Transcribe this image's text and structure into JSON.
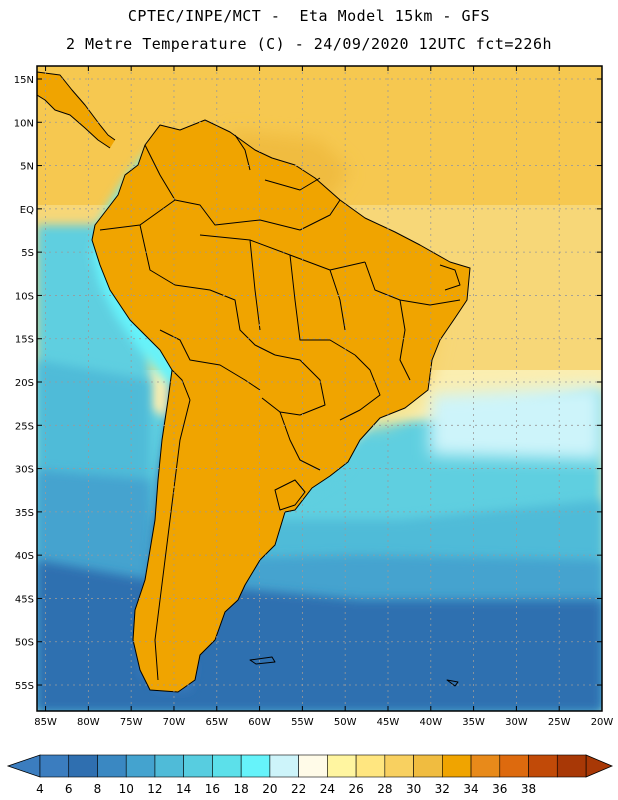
{
  "header": {
    "line1": "CPTEC/INPE/MCT -  Eta Model 15km - GFS",
    "line2": "2 Metre Temperature (C) - 24/09/2020 12UTC fct=226h"
  },
  "map": {
    "region": "South America",
    "lat_labels": [
      "15N",
      "10N",
      "5N",
      "EQ",
      "5S",
      "10S",
      "15S",
      "20S",
      "25S",
      "30S",
      "35S",
      "40S",
      "45S",
      "50S",
      "55S"
    ],
    "lon_labels": [
      "85W",
      "80W",
      "75W",
      "70W",
      "65W",
      "60W",
      "55W",
      "50W",
      "45W",
      "40W",
      "35W",
      "30W",
      "25W",
      "20W"
    ],
    "lat_values": [
      15,
      10,
      5,
      0,
      -5,
      -10,
      -15,
      -20,
      -25,
      -30,
      -35,
      -40,
      -45,
      -50,
      -55
    ],
    "lon_values": [
      -85,
      -80,
      -75,
      -70,
      -65,
      -60,
      -55,
      -50,
      -45,
      -40,
      -35,
      -30,
      -25,
      -20
    ],
    "lat_range": [
      -58,
      16.5
    ],
    "lon_range": [
      -86,
      -20
    ]
  },
  "colorbar": {
    "labels": [
      "4",
      "6",
      "8",
      "10",
      "12",
      "14",
      "16",
      "18",
      "20",
      "22",
      "24",
      "26",
      "28",
      "30",
      "32",
      "34",
      "36",
      "38"
    ],
    "colors": [
      "#3b7dbf",
      "#2f6fb0",
      "#3a88c2",
      "#44a3cf",
      "#4fbbd8",
      "#57cde0",
      "#5ce0ea",
      "#66f3fa",
      "#cdf4fa",
      "#fffbe8",
      "#fff5a0",
      "#ffe680",
      "#f8d060",
      "#f0bc40",
      "#f0a400",
      "#e88a1a",
      "#dd6a0e",
      "#c14a08",
      "#a83806"
    ],
    "left_arrow_color": "#3b7dbf",
    "right_arrow_color": "#a83806"
  },
  "palette": {
    "frame": "#000000",
    "grid": "#9a9a9a",
    "coast": "#000000"
  }
}
